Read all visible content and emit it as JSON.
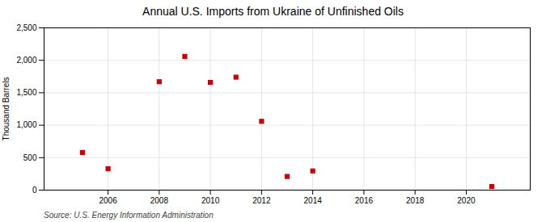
{
  "chart_data": {
    "type": "scatter",
    "title": "Annual U.S. Imports from Ukraine of Unfinished Oils",
    "ylabel": "Thousand Barrels",
    "annotations": [
      "Source: U.S. Energy Information Administration"
    ],
    "x": [
      2005,
      2006,
      2008,
      2009,
      2010,
      2011,
      2012,
      2013,
      2014,
      2021
    ],
    "values": [
      580,
      330,
      1670,
      2060,
      1660,
      1740,
      1060,
      210,
      295,
      55
    ],
    "color": "#cc0000",
    "marker": "square",
    "xlim": [
      2003.5,
      2022.5
    ],
    "ylim": [
      0,
      2500
    ],
    "xticks": [
      2006,
      2008,
      2010,
      2012,
      2014,
      2016,
      2018,
      2020
    ],
    "yticks": [
      0,
      500,
      {
        "value": 1000,
        "label": "1,000"
      },
      {
        "value": 1500,
        "label": "1,500"
      },
      {
        "value": 2000,
        "label": "2,000"
      },
      {
        "value": 2500,
        "label": "2,500"
      }
    ],
    "grid": true
  }
}
